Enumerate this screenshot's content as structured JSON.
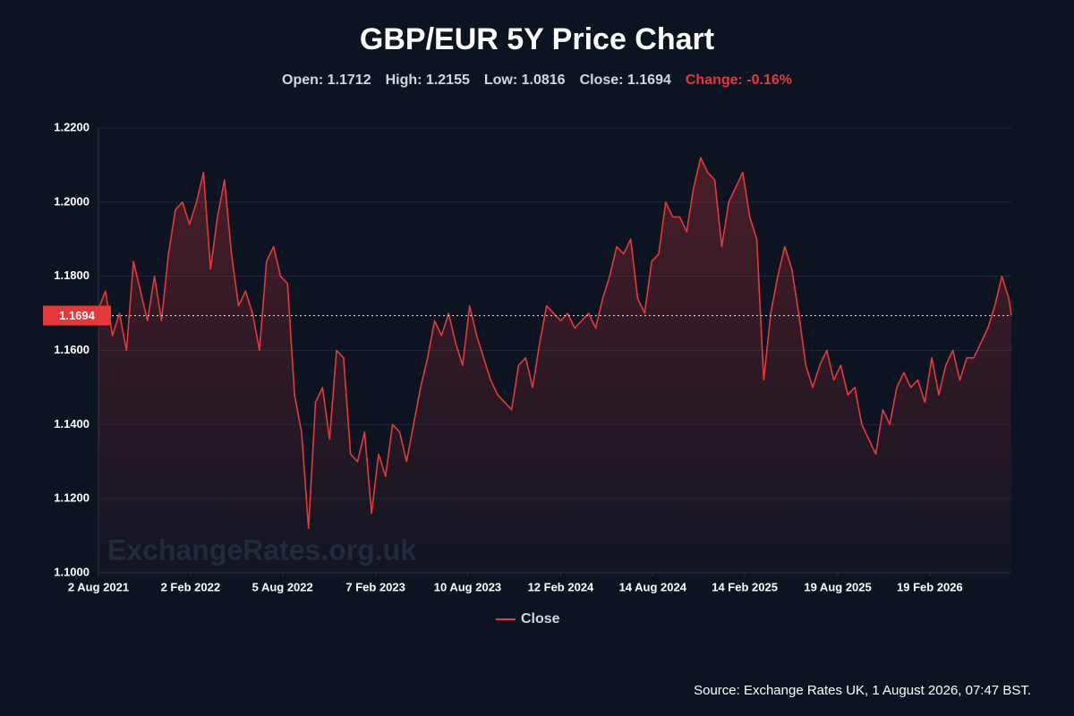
{
  "chart_data": {
    "type": "line",
    "title": "GBP/EUR 5Y Price Chart",
    "stats": [
      "Open: 1.1712",
      "High: 1.2155",
      "Low: 1.0816",
      "Close: 1.1694"
    ],
    "change": "Change: -0.16%",
    "change_color": "#e5383b",
    "watermark": "ExchangeRates.org.uk",
    "source": "Source: Exchange Rates UK, 1 August 2026, 07:47 BST.",
    "current_value": 1.1694,
    "x": [
      "2021-08-02",
      "2021-08-16",
      "2021-08-30",
      "2021-09-13",
      "2021-09-27",
      "2021-10-11",
      "2021-10-25",
      "2021-11-08",
      "2021-11-22",
      "2021-12-06",
      "2021-12-20",
      "2022-01-03",
      "2022-01-17",
      "2022-01-31",
      "2022-02-14",
      "2022-02-28",
      "2022-03-14",
      "2022-03-28",
      "2022-04-11",
      "2022-04-25",
      "2022-05-09",
      "2022-05-23",
      "2022-06-06",
      "2022-06-20",
      "2022-07-04",
      "2022-07-18",
      "2022-08-01",
      "2022-08-15",
      "2022-08-29",
      "2022-09-12",
      "2022-09-26",
      "2022-10-10",
      "2022-10-24",
      "2022-11-07",
      "2022-11-21",
      "2022-12-05",
      "2022-12-19",
      "2023-01-02",
      "2023-01-16",
      "2023-01-30",
      "2023-02-13",
      "2023-02-27",
      "2023-03-13",
      "2023-03-27",
      "2023-04-10",
      "2023-04-24",
      "2023-05-08",
      "2023-05-22",
      "2023-06-05",
      "2023-06-19",
      "2023-07-03",
      "2023-07-17",
      "2023-07-31",
      "2023-08-14",
      "2023-08-28",
      "2023-09-11",
      "2023-09-25",
      "2023-10-09",
      "2023-10-23",
      "2023-11-06",
      "2023-11-20",
      "2023-12-04",
      "2023-12-18",
      "2024-01-01",
      "2024-01-15",
      "2024-01-29",
      "2024-02-12",
      "2024-02-26",
      "2024-03-11",
      "2024-03-25",
      "2024-04-08",
      "2024-04-22",
      "2024-05-06",
      "2024-05-20",
      "2024-06-03",
      "2024-06-17",
      "2024-07-01",
      "2024-07-15",
      "2024-07-29",
      "2024-08-12",
      "2024-08-26",
      "2024-09-09",
      "2024-09-23",
      "2024-10-07",
      "2024-10-21",
      "2024-11-04",
      "2024-11-18",
      "2024-12-02",
      "2024-12-16",
      "2024-12-30",
      "2025-01-13",
      "2025-01-27",
      "2025-02-10",
      "2025-02-24",
      "2025-03-10",
      "2025-03-24",
      "2025-04-07",
      "2025-04-21",
      "2025-05-05",
      "2025-05-19",
      "2025-06-02",
      "2025-06-16",
      "2025-06-30",
      "2025-07-14",
      "2025-07-28",
      "2025-08-11",
      "2025-08-25",
      "2025-09-08",
      "2025-09-22",
      "2025-10-06",
      "2025-10-20",
      "2025-11-03",
      "2025-11-17",
      "2025-12-01",
      "2025-12-15",
      "2025-12-29",
      "2026-01-12",
      "2026-01-26",
      "2026-02-09",
      "2026-02-23",
      "2026-03-09",
      "2026-03-23",
      "2026-04-06",
      "2026-04-20",
      "2026-05-04",
      "2026-05-18",
      "2026-06-01",
      "2026-06-15",
      "2026-06-29",
      "2026-07-13",
      "2026-07-27",
      "2026-08-01"
    ],
    "series": [
      {
        "name": "Close",
        "color": "#e5383b",
        "values": [
          1.1712,
          1.176,
          1.164,
          1.17,
          1.16,
          1.184,
          1.176,
          1.168,
          1.18,
          1.168,
          1.186,
          1.198,
          1.2,
          1.194,
          1.2,
          1.208,
          1.182,
          1.196,
          1.206,
          1.186,
          1.172,
          1.176,
          1.17,
          1.16,
          1.184,
          1.188,
          1.18,
          1.178,
          1.148,
          1.138,
          1.112,
          1.146,
          1.15,
          1.136,
          1.16,
          1.158,
          1.132,
          1.13,
          1.138,
          1.116,
          1.132,
          1.126,
          1.14,
          1.138,
          1.13,
          1.14,
          1.15,
          1.158,
          1.168,
          1.164,
          1.17,
          1.162,
          1.156,
          1.172,
          1.164,
          1.158,
          1.152,
          1.148,
          1.146,
          1.144,
          1.156,
          1.158,
          1.15,
          1.162,
          1.172,
          1.17,
          1.168,
          1.17,
          1.166,
          1.168,
          1.17,
          1.166,
          1.174,
          1.18,
          1.188,
          1.186,
          1.19,
          1.174,
          1.17,
          1.184,
          1.186,
          1.2,
          1.196,
          1.196,
          1.192,
          1.204,
          1.212,
          1.208,
          1.206,
          1.188,
          1.2,
          1.204,
          1.208,
          1.196,
          1.19,
          1.152,
          1.17,
          1.18,
          1.188,
          1.182,
          1.17,
          1.156,
          1.15,
          1.156,
          1.16,
          1.152,
          1.156,
          1.148,
          1.15,
          1.14,
          1.136,
          1.132,
          1.144,
          1.14,
          1.15,
          1.154,
          1.15,
          1.152,
          1.146,
          1.158,
          1.148,
          1.156,
          1.16,
          1.152,
          1.158,
          1.158,
          1.162,
          1.166,
          1.172,
          1.18,
          1.174,
          1.1694
        ]
      }
    ],
    "xlim": [
      "2021-08-02",
      "2026-08-01"
    ],
    "xticks": [
      {
        "value": "2021-08-02",
        "label": "2 Aug 2021"
      },
      {
        "value": "2022-02-02",
        "label": "2 Feb 2022"
      },
      {
        "value": "2022-08-05",
        "label": "5 Aug 2022"
      },
      {
        "value": "2023-02-07",
        "label": "7 Feb 2023"
      },
      {
        "value": "2023-08-10",
        "label": "10 Aug 2023"
      },
      {
        "value": "2024-02-12",
        "label": "12 Feb 2024"
      },
      {
        "value": "2024-08-14",
        "label": "14 Aug 2024"
      },
      {
        "value": "2025-02-14",
        "label": "14 Feb 2025"
      },
      {
        "value": "2025-08-19",
        "label": "19 Aug 2025"
      },
      {
        "value": "2026-02-19",
        "label": "19 Feb 2026"
      }
    ],
    "ylim": [
      1.1,
      1.22
    ],
    "yticks": [
      {
        "value": 1.1,
        "label": "1.1000"
      },
      {
        "value": 1.12,
        "label": "1.1200"
      },
      {
        "value": 1.14,
        "label": "1.1400"
      },
      {
        "value": 1.16,
        "label": "1.1600"
      },
      {
        "value": 1.18,
        "label": "1.1800"
      },
      {
        "value": 1.2,
        "label": "1.2000"
      },
      {
        "value": 1.22,
        "label": "1.2200"
      }
    ],
    "grid": true,
    "legend": "bottom"
  }
}
